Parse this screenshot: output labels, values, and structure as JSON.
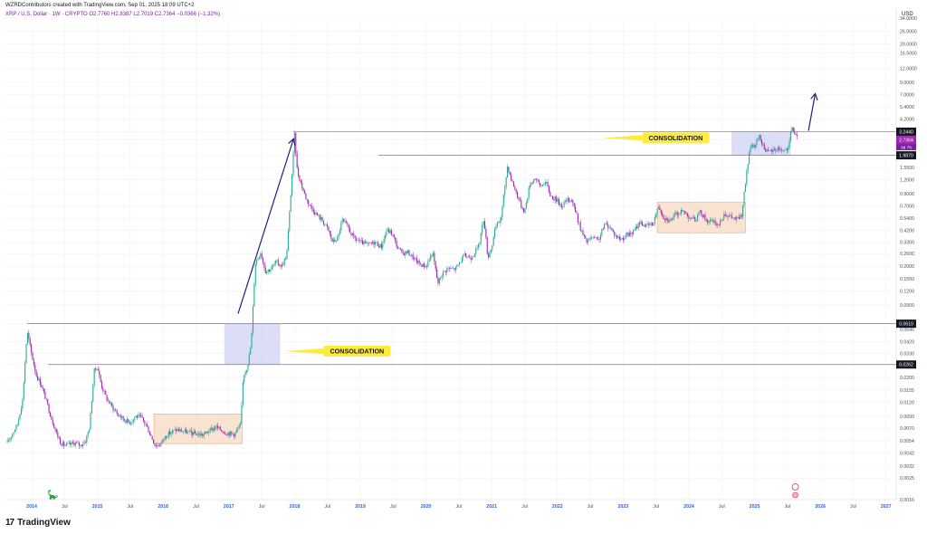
{
  "header": {
    "credit": "WZRDContributors created with TradingView.com, Sep 01, 2025 18:09 UTC+2",
    "symbol_line": "XRP / U.S. Dollar · 1W · CRYPTO   O2.7760  H2.8387  L2.7019  C2.7364  −0.0366 (−1.32%)"
  },
  "brand": {
    "logo": "17",
    "name": "TradingView"
  },
  "colors": {
    "up": "#22ab94",
    "down": "#9c27b0",
    "zone": "#c5c6f0",
    "range": "#f9d9c2",
    "range_border": "#e8a577",
    "label_bg": "#ffeb3b",
    "arrow": "#1a237e"
  },
  "icons": [
    "tradingview-logo-icon",
    "arrow-up-icon",
    "dino-icon",
    "earnings-icon"
  ],
  "chart_data": {
    "type": "candlestick",
    "series_name": "XRP / U.S. Dollar",
    "interval": "1W",
    "yscale": "log",
    "ylabel": "USD",
    "ylim": [
      0.0016,
      34
    ],
    "yticks": [
      "34.0000",
      "26.0000",
      "20.0000",
      "16.5000",
      "12.0000",
      "9.0000",
      "7.0000",
      "5.4000",
      "4.2000",
      "3.2440",
      "2.7364",
      "1.9870",
      "1.5500",
      "1.2000",
      "0.9000",
      "0.7000",
      "0.5400",
      "0.4200",
      "0.3300",
      "0.2600",
      "0.2000",
      "0.1550",
      "0.1200",
      "0.0900",
      "0.0610",
      "0.0540",
      "0.0420",
      "0.0330",
      "0.0262",
      "0.0200",
      "0.0155",
      "0.0120",
      "0.0090",
      "0.0070",
      "0.0054",
      "0.0042",
      "0.0032",
      "0.0025",
      "0.0016"
    ],
    "price_labels": [
      {
        "value": 3.244,
        "text": "3.2440"
      },
      {
        "value": 2.7364,
        "text": "2.7364"
      },
      {
        "value": 1.987,
        "text": "1.9870"
      },
      {
        "value": 0.061,
        "text": "0.0610"
      },
      {
        "value": 0.0262,
        "text": "0.0262"
      }
    ],
    "countdown": "3d 7h",
    "xticks": [
      "2014",
      "Jul",
      "2015",
      "Jul",
      "2016",
      "Jul",
      "2017",
      "Jul",
      "2018",
      "Jul",
      "2019",
      "Jul",
      "2020",
      "Jul",
      "2021",
      "Jul",
      "2022",
      "Jul",
      "2023",
      "Jul",
      "2024",
      "Jul",
      "2025",
      "Jul",
      "2026",
      "Jul",
      "2027"
    ],
    "xrange": [
      2013.6,
      2027.1
    ],
    "waypoints": [
      [
        2013.63,
        0.0052
      ],
      [
        2013.72,
        0.0065
      ],
      [
        2013.78,
        0.0075
      ],
      [
        2013.86,
        0.0125
      ],
      [
        2013.93,
        0.052
      ],
      [
        2014.0,
        0.032
      ],
      [
        2014.07,
        0.021
      ],
      [
        2014.14,
        0.0175
      ],
      [
        2014.22,
        0.0125
      ],
      [
        2014.3,
        0.0086
      ],
      [
        2014.38,
        0.0063
      ],
      [
        2014.44,
        0.0052
      ],
      [
        2014.5,
        0.0049
      ],
      [
        2014.58,
        0.005
      ],
      [
        2014.66,
        0.0052
      ],
      [
        2014.74,
        0.0049
      ],
      [
        2014.82,
        0.0054
      ],
      [
        2014.88,
        0.0072
      ],
      [
        2014.95,
        0.023
      ],
      [
        2015.0,
        0.025
      ],
      [
        2015.06,
        0.017
      ],
      [
        2015.14,
        0.013
      ],
      [
        2015.22,
        0.011
      ],
      [
        2015.32,
        0.0092
      ],
      [
        2015.42,
        0.0083
      ],
      [
        2015.5,
        0.0079
      ],
      [
        2015.58,
        0.009
      ],
      [
        2015.66,
        0.0088
      ],
      [
        2015.74,
        0.0075
      ],
      [
        2015.82,
        0.0059
      ],
      [
        2015.88,
        0.0049
      ],
      [
        2015.95,
        0.005
      ],
      [
        2016.05,
        0.0061
      ],
      [
        2016.2,
        0.0068
      ],
      [
        2016.4,
        0.0064
      ],
      [
        2016.6,
        0.0061
      ],
      [
        2016.8,
        0.0072
      ],
      [
        2016.95,
        0.0064
      ],
      [
        2017.08,
        0.0062
      ],
      [
        2017.18,
        0.0075
      ],
      [
        2017.22,
        0.021
      ],
      [
        2017.28,
        0.025
      ],
      [
        2017.34,
        0.04
      ],
      [
        2017.4,
        0.21
      ],
      [
        2017.48,
        0.27
      ],
      [
        2017.56,
        0.18
      ],
      [
        2017.64,
        0.19
      ],
      [
        2017.72,
        0.22
      ],
      [
        2017.8,
        0.2
      ],
      [
        2017.88,
        0.25
      ],
      [
        2017.95,
        1.05
      ],
      [
        2018.0,
        3.05
      ],
      [
        2018.04,
        1.45
      ],
      [
        2018.1,
        1.1
      ],
      [
        2018.18,
        0.8
      ],
      [
        2018.26,
        0.67
      ],
      [
        2018.34,
        0.58
      ],
      [
        2018.42,
        0.52
      ],
      [
        2018.5,
        0.44
      ],
      [
        2018.58,
        0.33
      ],
      [
        2018.66,
        0.36
      ],
      [
        2018.72,
        0.52
      ],
      [
        2018.8,
        0.46
      ],
      [
        2018.9,
        0.36
      ],
      [
        2019.0,
        0.33
      ],
      [
        2019.12,
        0.31
      ],
      [
        2019.22,
        0.33
      ],
      [
        2019.32,
        0.3
      ],
      [
        2019.4,
        0.42
      ],
      [
        2019.48,
        0.4
      ],
      [
        2019.56,
        0.3
      ],
      [
        2019.64,
        0.26
      ],
      [
        2019.72,
        0.27
      ],
      [
        2019.8,
        0.24
      ],
      [
        2019.9,
        0.21
      ],
      [
        2020.0,
        0.2
      ],
      [
        2020.1,
        0.27
      ],
      [
        2020.18,
        0.14
      ],
      [
        2020.24,
        0.17
      ],
      [
        2020.32,
        0.19
      ],
      [
        2020.45,
        0.19
      ],
      [
        2020.58,
        0.25
      ],
      [
        2020.68,
        0.24
      ],
      [
        2020.8,
        0.3
      ],
      [
        2020.88,
        0.55
      ],
      [
        2020.94,
        0.24
      ],
      [
        2021.0,
        0.3
      ],
      [
        2021.06,
        0.45
      ],
      [
        2021.14,
        0.54
      ],
      [
        2021.24,
        1.6
      ],
      [
        2021.3,
        1.2
      ],
      [
        2021.38,
        0.9
      ],
      [
        2021.45,
        0.7
      ],
      [
        2021.5,
        0.62
      ],
      [
        2021.58,
        1.1
      ],
      [
        2021.66,
        1.25
      ],
      [
        2021.74,
        1.05
      ],
      [
        2021.82,
        1.15
      ],
      [
        2021.9,
        0.85
      ],
      [
        2021.98,
        0.8
      ],
      [
        2022.06,
        0.7
      ],
      [
        2022.14,
        0.78
      ],
      [
        2022.22,
        0.8
      ],
      [
        2022.3,
        0.55
      ],
      [
        2022.36,
        0.42
      ],
      [
        2022.44,
        0.33
      ],
      [
        2022.52,
        0.36
      ],
      [
        2022.62,
        0.34
      ],
      [
        2022.72,
        0.48
      ],
      [
        2022.8,
        0.45
      ],
      [
        2022.88,
        0.38
      ],
      [
        2022.96,
        0.35
      ],
      [
        2023.05,
        0.38
      ],
      [
        2023.15,
        0.4
      ],
      [
        2023.25,
        0.5
      ],
      [
        2023.35,
        0.46
      ],
      [
        2023.45,
        0.48
      ],
      [
        2023.54,
        0.7
      ],
      [
        2023.62,
        0.55
      ],
      [
        2023.72,
        0.52
      ],
      [
        2023.82,
        0.6
      ],
      [
        2023.92,
        0.62
      ],
      [
        2024.02,
        0.55
      ],
      [
        2024.1,
        0.52
      ],
      [
        2024.18,
        0.62
      ],
      [
        2024.26,
        0.52
      ],
      [
        2024.36,
        0.5
      ],
      [
        2024.46,
        0.47
      ],
      [
        2024.54,
        0.6
      ],
      [
        2024.62,
        0.56
      ],
      [
        2024.72,
        0.53
      ],
      [
        2024.8,
        0.56
      ],
      [
        2024.86,
        1.1
      ],
      [
        2024.93,
        2.4
      ],
      [
        2025.0,
        2.3
      ],
      [
        2025.06,
        3.0
      ],
      [
        2025.12,
        2.5
      ],
      [
        2025.2,
        2.1
      ],
      [
        2025.28,
        2.2
      ],
      [
        2025.36,
        2.3
      ],
      [
        2025.44,
        2.2
      ],
      [
        2025.52,
        2.3
      ],
      [
        2025.56,
        3.5
      ],
      [
        2025.62,
        3.1
      ],
      [
        2025.66,
        2.9
      ]
    ],
    "zones": [
      {
        "x0": 2016.93,
        "x1": 2017.78,
        "low": 0.0262,
        "high": 0.061,
        "style": "blue"
      },
      {
        "x0": 2024.65,
        "x1": 2025.55,
        "low": 1.987,
        "high": 3.244,
        "style": "blue"
      },
      {
        "x0": 2015.86,
        "x1": 2017.2,
        "low": 0.0051,
        "high": 0.0094,
        "style": "orange"
      },
      {
        "x0": 2023.52,
        "x1": 2024.86,
        "low": 0.4,
        "high": 0.75,
        "style": "orange"
      }
    ],
    "hlines": [
      {
        "value": 0.061,
        "x0": 2013.93,
        "style": "gray"
      },
      {
        "value": 0.0262,
        "x0": 2014.25,
        "style": "gray"
      },
      {
        "value": 3.244,
        "x0": 2017.98,
        "style": "gray"
      },
      {
        "value": 1.987,
        "x0": 2019.28,
        "style": "gray"
      }
    ],
    "labels": [
      {
        "text": "CONSOLIDATION",
        "x": 2018.95,
        "y": 0.0345
      },
      {
        "text": "CONSOLIDATION",
        "x": 2023.8,
        "y": 2.85
      }
    ],
    "arrows": [
      {
        "from": [
          2017.14,
          0.075
        ],
        "to": [
          2017.98,
          2.75
        ]
      },
      {
        "from": [
          2025.82,
          3.3
        ],
        "to": [
          2025.92,
          7.0
        ]
      }
    ]
  }
}
